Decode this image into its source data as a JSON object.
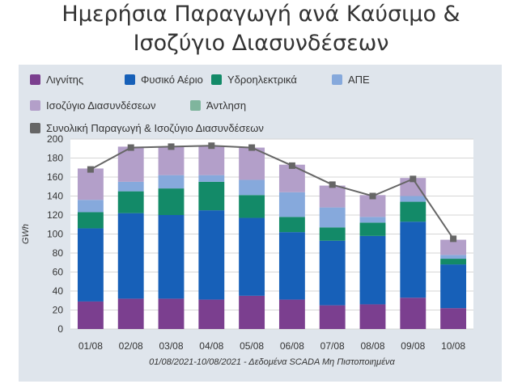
{
  "page_title": {
    "line1": "Ημερήσια Παραγωγή ανά Καύσιμο &",
    "line2": "Ισοζύγιο Διασυνδέσεων"
  },
  "chart_data": {
    "type": "bar",
    "stacked": true,
    "title": "Ημερήσια Παραγωγή ανά Καύσιμο & Ισοζύγιο Διασυνδέσεων",
    "xlabel": "01/08/2021-10/08/2021 - Δεδομένα SCADA Μη Πιστοποιημένα",
    "ylabel": "GWh",
    "ylim": [
      0,
      200
    ],
    "yticks": [
      0,
      20,
      40,
      60,
      80,
      100,
      120,
      140,
      160,
      180,
      200
    ],
    "grid": true,
    "legend_position": "top",
    "categories": [
      "01/08",
      "02/08",
      "03/08",
      "04/08",
      "05/08",
      "06/08",
      "07/08",
      "08/08",
      "09/08",
      "10/08"
    ],
    "series": [
      {
        "name": "Λιγνίτης",
        "color": "#7b3f8f",
        "values": [
          29,
          32,
          32,
          31,
          35,
          31,
          25,
          26,
          33,
          22
        ]
      },
      {
        "name": "Φυσικό Αέριο",
        "color": "#1760b8",
        "values": [
          77,
          90,
          88,
          94,
          82,
          71,
          68,
          72,
          80,
          46
        ]
      },
      {
        "name": "Υδροηλεκτρικά",
        "color": "#138a68",
        "values": [
          17,
          23,
          28,
          30,
          24,
          16,
          14,
          14,
          21,
          6
        ]
      },
      {
        "name": "ΑΠΕ",
        "color": "#86a9dc",
        "values": [
          13,
          10,
          14,
          7,
          16,
          26,
          21,
          6,
          6,
          4
        ]
      },
      {
        "name": "Ισοζύγιο Διασυνδέσεων",
        "color": "#b39fc9",
        "values": [
          33,
          37,
          30,
          31,
          34,
          29,
          23,
          23,
          19,
          16
        ]
      },
      {
        "name": "Άντληση",
        "color": "#7fb59d",
        "values": [
          0,
          0,
          0,
          0,
          0,
          0,
          0,
          0,
          0,
          0
        ]
      }
    ],
    "line_series": {
      "name": "Συνολική Παραγωγή & Ισοζύγιο Διασυνδέσεων",
      "color": "#666666",
      "values": [
        168,
        191,
        192,
        193,
        191,
        172,
        152,
        140,
        158,
        95
      ]
    }
  }
}
